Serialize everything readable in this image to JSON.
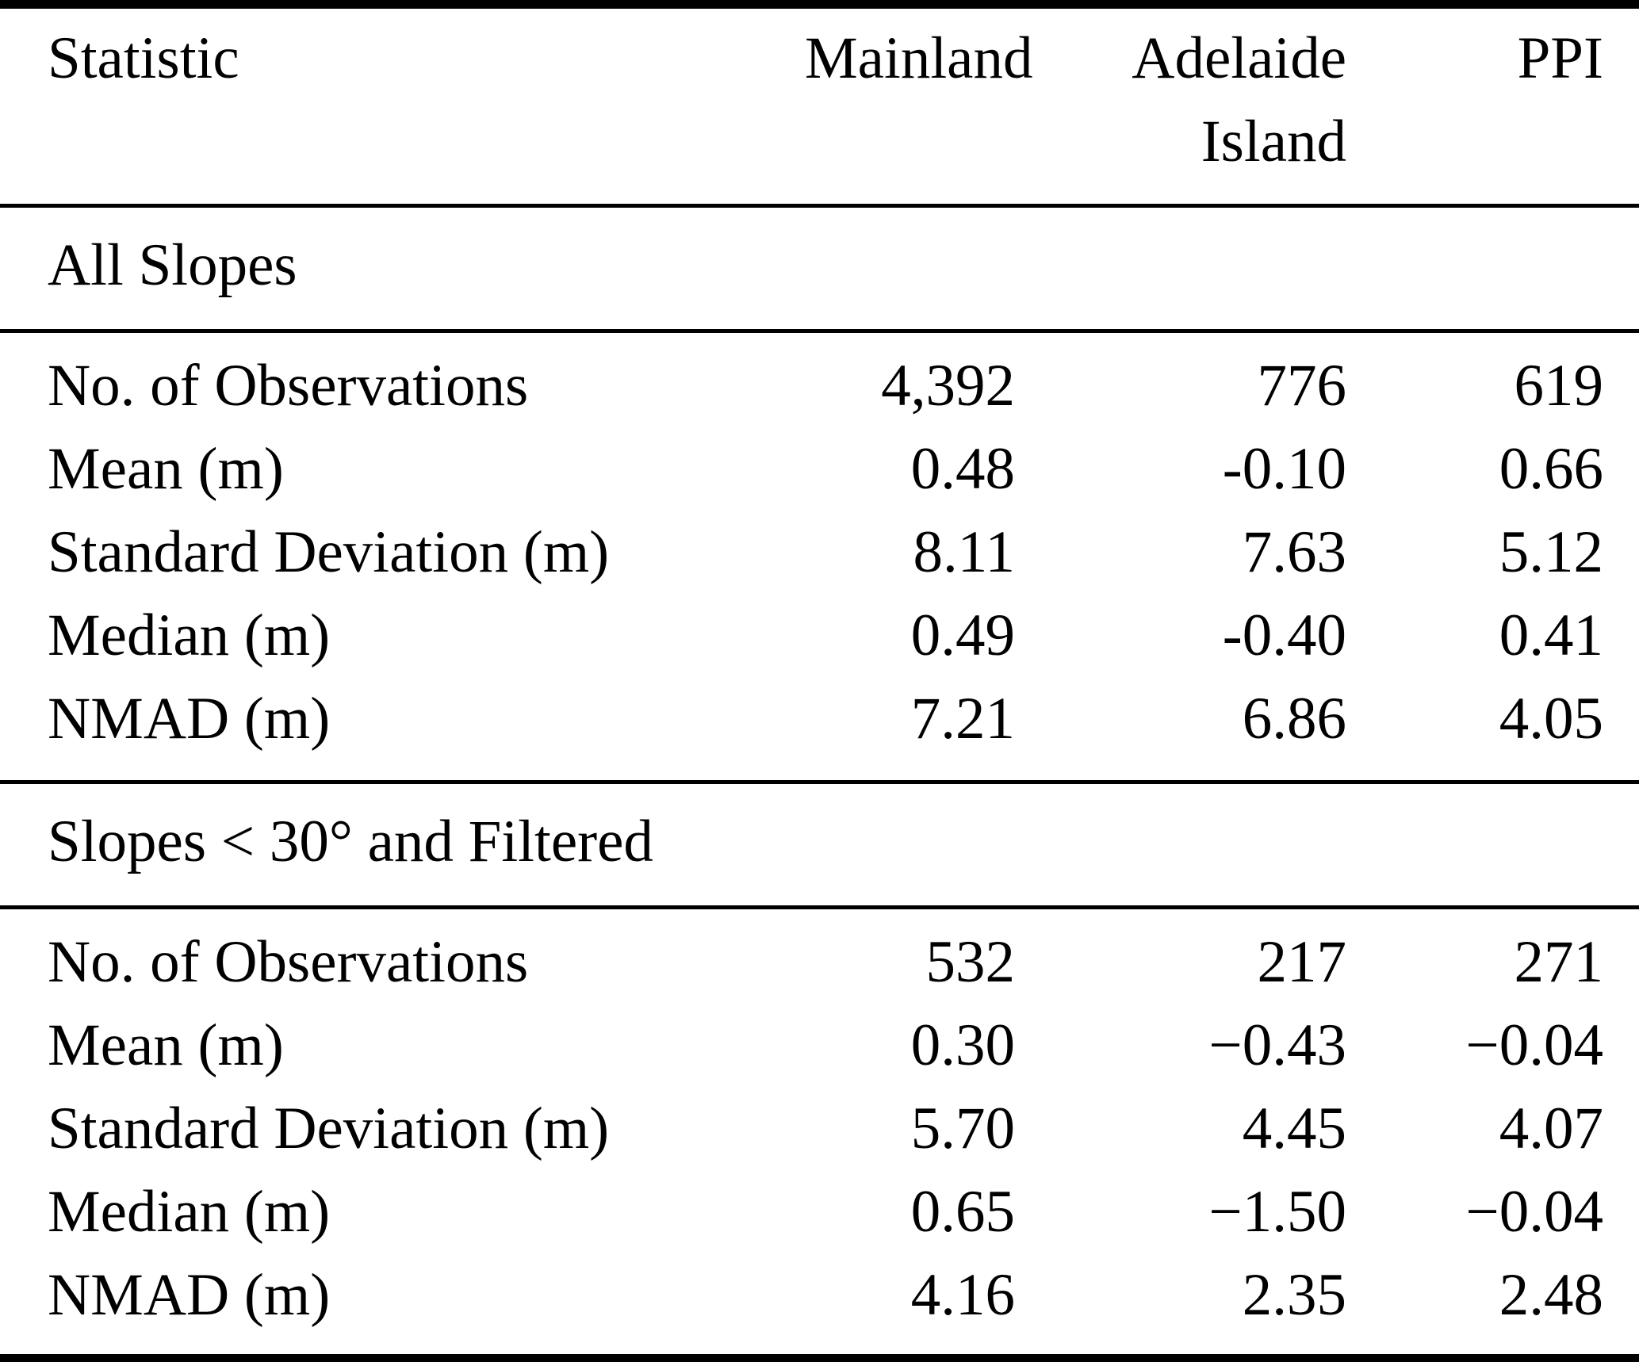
{
  "colors": {
    "background": "#ffffff",
    "text": "#000000",
    "rules": "#000000"
  },
  "table": {
    "header": {
      "statistic": "Statistic",
      "mainland": "Mainland",
      "adelaide": "Adelaide Island",
      "ppi": "PPI"
    },
    "sections": [
      {
        "title": "All Slopes",
        "rows": [
          {
            "label": "No. of Observations",
            "mainland": "4,392",
            "adelaide": "776",
            "ppi": "619"
          },
          {
            "label": "Mean (m)",
            "mainland": "0.48",
            "adelaide": "-0.10",
            "ppi": "0.66"
          },
          {
            "label": "Standard Deviation (m)",
            "mainland": "8.11",
            "adelaide": "7.63",
            "ppi": "5.12"
          },
          {
            "label": "Median (m)",
            "mainland": "0.49",
            "adelaide": "-0.40",
            "ppi": "0.41"
          },
          {
            "label": "NMAD (m)",
            "mainland": "7.21",
            "adelaide": "6.86",
            "ppi": "4.05"
          }
        ]
      },
      {
        "title": "Slopes < 30° and Filtered",
        "rows": [
          {
            "label": "No. of Observations",
            "mainland": "532",
            "adelaide": "217",
            "ppi": "271"
          },
          {
            "label": "Mean (m)",
            "mainland": "0.30",
            "adelaide": "−0.43",
            "ppi": "−0.04"
          },
          {
            "label": "Standard Deviation (m)",
            "mainland": "5.70",
            "adelaide": "4.45",
            "ppi": "4.07"
          },
          {
            "label": "Median (m)",
            "mainland": "0.65",
            "adelaide": "−1.50",
            "ppi": "−0.04"
          },
          {
            "label": "NMAD (m)",
            "mainland": "4.16",
            "adelaide": "2.35",
            "ppi": "2.48"
          }
        ]
      }
    ]
  }
}
